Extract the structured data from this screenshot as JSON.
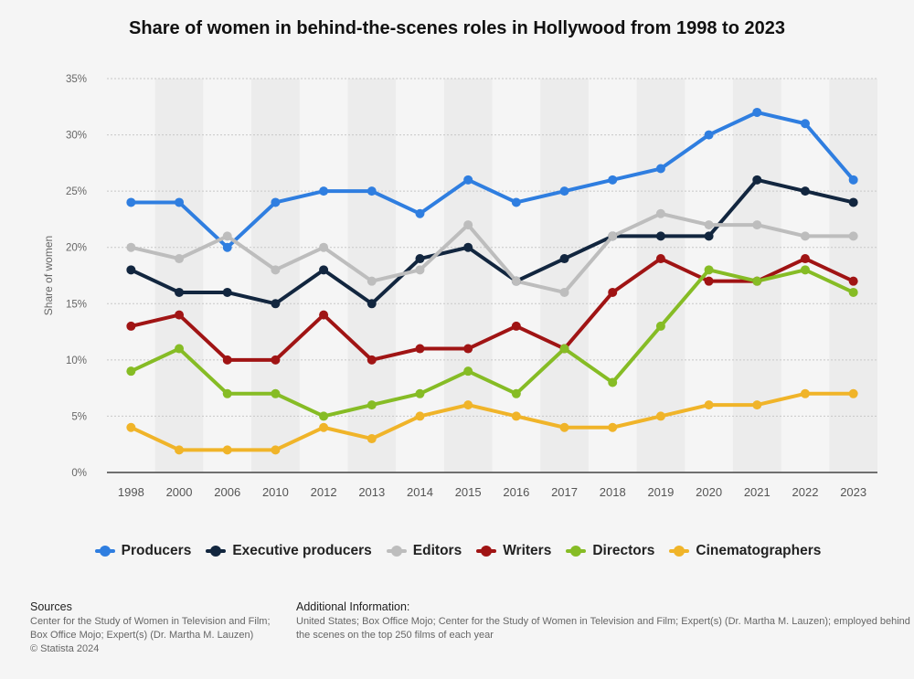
{
  "chart_data": {
    "type": "line",
    "title": "Share of women in behind-the-scenes roles in Hollywood from 1998 to 2023",
    "xlabel": "",
    "ylabel": "Share of women",
    "categories": [
      "1998",
      "2000",
      "2006",
      "2010",
      "2012",
      "2013",
      "2014",
      "2015",
      "2016",
      "2017",
      "2018",
      "2019",
      "2020",
      "2021",
      "2022",
      "2023"
    ],
    "ylim": [
      0,
      35
    ],
    "yticks": [
      "0%",
      "5%",
      "10%",
      "15%",
      "20%",
      "25%",
      "30%",
      "35%"
    ],
    "grid": true,
    "legend_position": "bottom",
    "series": [
      {
        "name": "Producers",
        "color": "#2f7ee0",
        "values": [
          24,
          24,
          20,
          24,
          25,
          25,
          23,
          26,
          24,
          25,
          26,
          27,
          30,
          32,
          31,
          26
        ]
      },
      {
        "name": "Executive producers",
        "color": "#12263f",
        "values": [
          18,
          16,
          16,
          15,
          18,
          15,
          19,
          20,
          17,
          19,
          21,
          21,
          21,
          26,
          25,
          24
        ]
      },
      {
        "name": "Editors",
        "color": "#bdbdbd",
        "values": [
          20,
          19,
          21,
          18,
          20,
          17,
          18,
          22,
          17,
          16,
          21,
          23,
          22,
          22,
          21,
          21
        ]
      },
      {
        "name": "Writers",
        "color": "#a01414",
        "values": [
          13,
          14,
          10,
          10,
          14,
          10,
          11,
          11,
          13,
          11,
          16,
          19,
          17,
          17,
          19,
          17
        ]
      },
      {
        "name": "Directors",
        "color": "#86bc25",
        "values": [
          9,
          11,
          7,
          7,
          5,
          6,
          7,
          9,
          7,
          11,
          8,
          13,
          18,
          17,
          18,
          16
        ]
      },
      {
        "name": "Cinematographers",
        "color": "#f0b429",
        "values": [
          4,
          2,
          2,
          2,
          4,
          3,
          5,
          6,
          5,
          4,
          4,
          5,
          6,
          6,
          7,
          7
        ]
      }
    ]
  },
  "footer": {
    "sources_heading": "Sources",
    "sources_text": "Center for the Study of Women in Television and Film; Box Office Mojo; Expert(s) (Dr. Martha M. Lauzen)",
    "copyright": "© Statista 2024",
    "additional_heading": "Additional Information:",
    "additional_text": "United States; Box Office Mojo; Center for the Study of Women in Television and Film; Expert(s) (Dr. Martha M. Lauzen); employed behind the scenes on the top 250 films of each year"
  }
}
